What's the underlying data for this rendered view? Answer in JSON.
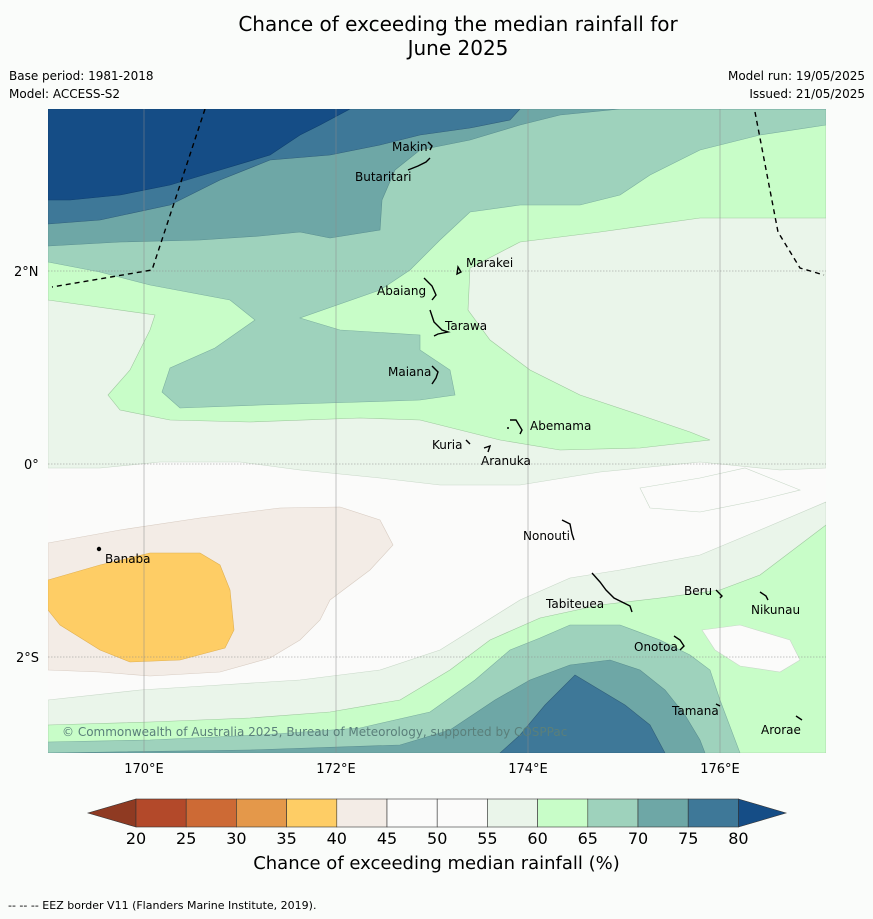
{
  "title_line1": "Chance of exceeding the median rainfall for",
  "title_line2": "June 2025",
  "base_period": "Base period: 1981-2018",
  "model": "Model: ACCESS-S2",
  "model_run": "Model run: 19/05/2025",
  "issued": "Issued: 21/05/2025",
  "copyright": "© Commonwealth of Australia 2025, Bureau of Meteorology, supported by COSPPac",
  "lat_labels": [
    "2°N",
    "0°",
    "2°S"
  ],
  "lon_labels": [
    "170°E",
    "172°E",
    "174°E",
    "176°E"
  ],
  "islands": [
    "Makin",
    "Butaritari",
    "Marakei",
    "Abaiang",
    "Tarawa",
    "Maiana",
    "Abemama",
    "Kuria",
    "Aranuka",
    "Nonouti",
    "Banaba",
    "Tabiteuea",
    "Beru",
    "Nikunau",
    "Onotoa",
    "Tamana",
    "Arorae"
  ],
  "colorbar": {
    "ticks": [
      "20",
      "25",
      "30",
      "35",
      "40",
      "45",
      "50",
      "55",
      "60",
      "65",
      "70",
      "75",
      "80"
    ],
    "colors": [
      "#b3492a",
      "#cd6a35",
      "#e4984a",
      "#fecd65",
      "#f3ece6",
      "#fbfbfa",
      "#fbfbfa",
      "#eaf5ea",
      "#c8fdc8",
      "#9ed2bc",
      "#6ea7a6",
      "#3e7898"
    ],
    "low_color": "#8f3a22",
    "high_color": "#154d86",
    "label": "Chance of exceeding median rainfall (%)"
  },
  "footnote": "--  --  -- EEZ border V11 (Flanders Marine Institute, 2019)."
}
